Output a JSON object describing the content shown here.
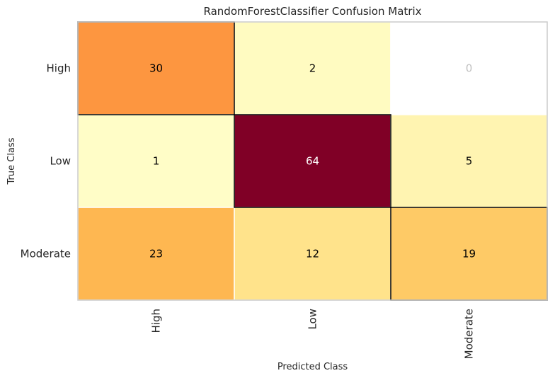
{
  "chart_data": {
    "type": "heatmap",
    "title": "RandomForestClassifier Confusion Matrix",
    "xlabel": "Predicted Class",
    "ylabel": "True Class",
    "x_categories": [
      "High",
      "Low",
      "Moderate"
    ],
    "y_categories": [
      "High",
      "Low",
      "Moderate"
    ],
    "values": [
      [
        30,
        2,
        0
      ],
      [
        1,
        64,
        5
      ],
      [
        23,
        12,
        19
      ]
    ],
    "colormap": "YlOrRd",
    "zero_color": "#ffffff",
    "zero_text_color": "#c0c0c0",
    "text_color_light": "#000000",
    "text_color_dark": "#ffffff",
    "diagonal_outline_color": "#000000",
    "cell_border_color": "#ffffff",
    "frame_color": "#cccccc",
    "grid": false,
    "legend": "none"
  }
}
